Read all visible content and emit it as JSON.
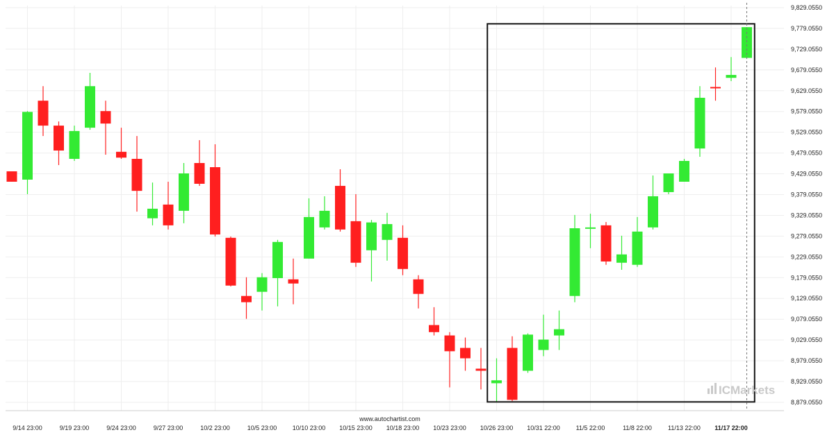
{
  "chart_data": {
    "type": "candlestick",
    "ylim": [
      8859,
      9834
    ],
    "y_ticks": [
      "9,829.0550",
      "9,779.0550",
      "9,729.0550",
      "9,679.0550",
      "9,629.0550",
      "9,579.0550",
      "9,529.0550",
      "9,479.0550",
      "9,429.0550",
      "9,379.0550",
      "9,329.0550",
      "9,279.0550",
      "9,229.0550",
      "9,179.0550",
      "9,129.0550",
      "9,079.0550",
      "9,029.0550",
      "8,979.0550",
      "8,929.0550",
      "8,879.0550"
    ],
    "x_ticks": [
      {
        "label": "9/14 23:00",
        "index": 1
      },
      {
        "label": "9/19 23:00",
        "index": 4
      },
      {
        "label": "9/24 23:00",
        "index": 7
      },
      {
        "label": "9/27 23:00",
        "index": 10
      },
      {
        "label": "10/2 23:00",
        "index": 13
      },
      {
        "label": "10/5 23:00",
        "index": 16
      },
      {
        "label": "10/10 23:00",
        "index": 19
      },
      {
        "label": "10/15 23:00",
        "index": 22
      },
      {
        "label": "10/18 23:00",
        "index": 25
      },
      {
        "label": "10/23 23:00",
        "index": 28
      },
      {
        "label": "10/26 23:00",
        "index": 31
      },
      {
        "label": "10/31 22:00",
        "index": 34
      },
      {
        "label": "11/5 22:00",
        "index": 37
      },
      {
        "label": "11/8 22:00",
        "index": 40
      },
      {
        "label": "11/13 22:00",
        "index": 43
      },
      {
        "label": "11/17 22:00",
        "index": 46,
        "bold": true
      }
    ],
    "candles": [
      {
        "o": 9435,
        "h": 9435,
        "l": 9410,
        "c": 9410
      },
      {
        "o": 9415,
        "h": 9580,
        "l": 9380,
        "c": 9578
      },
      {
        "o": 9605,
        "h": 9640,
        "l": 9520,
        "c": 9545
      },
      {
        "o": 9545,
        "h": 9555,
        "l": 9450,
        "c": 9485
      },
      {
        "o": 9465,
        "h": 9545,
        "l": 9460,
        "c": 9532
      },
      {
        "o": 9540,
        "h": 9672,
        "l": 9535,
        "c": 9640
      },
      {
        "o": 9580,
        "h": 9605,
        "l": 9475,
        "c": 9550
      },
      {
        "o": 9482,
        "h": 9540,
        "l": 9465,
        "c": 9468
      },
      {
        "o": 9465,
        "h": 9520,
        "l": 9338,
        "c": 9388
      },
      {
        "o": 9322,
        "h": 9408,
        "l": 9305,
        "c": 9345
      },
      {
        "o": 9355,
        "h": 9410,
        "l": 9295,
        "c": 9305
      },
      {
        "o": 9340,
        "h": 9455,
        "l": 9310,
        "c": 9430
      },
      {
        "o": 9455,
        "h": 9510,
        "l": 9400,
        "c": 9405
      },
      {
        "o": 9445,
        "h": 9500,
        "l": 9278,
        "c": 9283
      },
      {
        "o": 9275,
        "h": 9278,
        "l": 9158,
        "c": 9160
      },
      {
        "o": 9135,
        "h": 9180,
        "l": 9080,
        "c": 9120
      },
      {
        "o": 9145,
        "h": 9190,
        "l": 9100,
        "c": 9180
      },
      {
        "o": 9178,
        "h": 9270,
        "l": 9110,
        "c": 9265
      },
      {
        "o": 9175,
        "h": 9225,
        "l": 9115,
        "c": 9165
      },
      {
        "o": 9225,
        "h": 9370,
        "l": 9225,
        "c": 9325
      },
      {
        "o": 9300,
        "h": 9375,
        "l": 9295,
        "c": 9340
      },
      {
        "o": 9400,
        "h": 9440,
        "l": 9290,
        "c": 9295
      },
      {
        "o": 9315,
        "h": 9380,
        "l": 9205,
        "c": 9215
      },
      {
        "o": 9245,
        "h": 9318,
        "l": 9170,
        "c": 9312
      },
      {
        "o": 9270,
        "h": 9335,
        "l": 9220,
        "c": 9308
      },
      {
        "o": 9275,
        "h": 9305,
        "l": 9185,
        "c": 9200
      },
      {
        "o": 9175,
        "h": 9185,
        "l": 9105,
        "c": 9140
      },
      {
        "o": 9065,
        "h": 9108,
        "l": 9040,
        "c": 9048
      },
      {
        "o": 9040,
        "h": 9048,
        "l": 8915,
        "c": 9002
      },
      {
        "o": 9010,
        "h": 9035,
        "l": 8955,
        "c": 8985
      },
      {
        "o": 8960,
        "h": 9010,
        "l": 8910,
        "c": 8955
      },
      {
        "o": 8925,
        "h": 8985,
        "l": 8880,
        "c": 8932
      },
      {
        "o": 9010,
        "h": 9038,
        "l": 8882,
        "c": 8885
      },
      {
        "o": 8955,
        "h": 9045,
        "l": 8950,
        "c": 9042
      },
      {
        "o": 9005,
        "h": 9090,
        "l": 8990,
        "c": 9030
      },
      {
        "o": 9040,
        "h": 9100,
        "l": 9005,
        "c": 9055
      },
      {
        "o": 9135,
        "h": 9330,
        "l": 9120,
        "c": 9298
      },
      {
        "o": 9300,
        "h": 9333,
        "l": 9250,
        "c": 9300
      },
      {
        "o": 9305,
        "h": 9313,
        "l": 9210,
        "c": 9218
      },
      {
        "o": 9215,
        "h": 9280,
        "l": 9198,
        "c": 9235
      },
      {
        "o": 9210,
        "h": 9325,
        "l": 9205,
        "c": 9290
      },
      {
        "o": 9300,
        "h": 9425,
        "l": 9295,
        "c": 9375
      },
      {
        "o": 9385,
        "h": 9430,
        "l": 9380,
        "c": 9430
      },
      {
        "o": 9410,
        "h": 9465,
        "l": 9410,
        "c": 9460
      },
      {
        "o": 9490,
        "h": 9640,
        "l": 9470,
        "c": 9612
      },
      {
        "o": 9638,
        "h": 9685,
        "l": 9605,
        "c": 9636
      },
      {
        "o": 9660,
        "h": 9710,
        "l": 9652,
        "c": 9667
      },
      {
        "o": 9708,
        "h": 9782,
        "l": 9708,
        "c": 9782
      }
    ],
    "colors": {
      "up": "#33ea33",
      "down": "#ff1f1f",
      "grid": "#eeeeee",
      "box": "#111111"
    },
    "pattern_box": {
      "start_index": 31,
      "end_index": 47,
      "low": 8880,
      "high": 9790
    },
    "source_label": "www.autochartist.com",
    "watermark": "ICMarkets"
  }
}
